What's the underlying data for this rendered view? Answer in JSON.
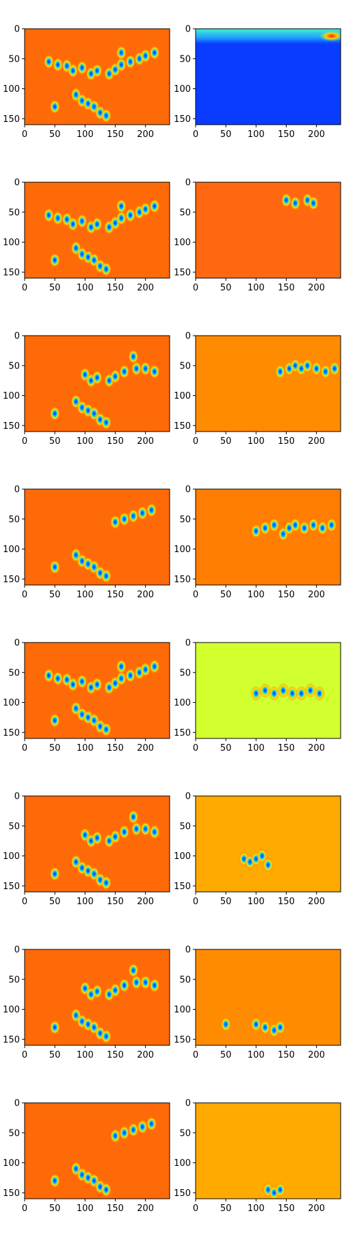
{
  "chart_data": {
    "type": "heatmap",
    "colormap": "jet",
    "layout": "8 rows x 2 columns of image panels",
    "x_range": [
      0,
      240
    ],
    "y_range": [
      160,
      0
    ],
    "x_ticks": [
      0,
      50,
      100,
      150,
      200
    ],
    "y_ticks": [
      0,
      50,
      100,
      150
    ],
    "rows": [
      {
        "left": {
          "background": "#ff6a08",
          "blobs": [
            [
              40,
              55
            ],
            [
              55,
              60
            ],
            [
              70,
              62
            ],
            [
              80,
              70
            ],
            [
              95,
              65
            ],
            [
              110,
              75
            ],
            [
              120,
              70
            ],
            [
              140,
              75
            ],
            [
              150,
              68
            ],
            [
              160,
              60
            ],
            [
              175,
              55
            ],
            [
              190,
              50
            ],
            [
              200,
              45
            ],
            [
              215,
              40
            ],
            [
              85,
              110
            ],
            [
              95,
              120
            ],
            [
              105,
              125
            ],
            [
              115,
              130
            ],
            [
              125,
              140
            ],
            [
              135,
              145
            ],
            [
              50,
              130
            ],
            [
              160,
              40
            ]
          ]
        },
        "right": {
          "background": "#0a3cff",
          "band": {
            "y": [
              0,
              25
            ],
            "color": "#2ec8e8",
            "hot_spot": [
              225,
              12
            ]
          }
        }
      },
      {
        "left": {
          "background": "#ff6a08",
          "blobs": [
            [
              40,
              55
            ],
            [
              55,
              60
            ],
            [
              70,
              62
            ],
            [
              80,
              70
            ],
            [
              95,
              65
            ],
            [
              110,
              75
            ],
            [
              120,
              70
            ],
            [
              140,
              75
            ],
            [
              150,
              68
            ],
            [
              160,
              60
            ],
            [
              175,
              55
            ],
            [
              190,
              50
            ],
            [
              200,
              45
            ],
            [
              215,
              40
            ],
            [
              85,
              110
            ],
            [
              95,
              120
            ],
            [
              105,
              125
            ],
            [
              115,
              130
            ],
            [
              125,
              140
            ],
            [
              135,
              145
            ],
            [
              50,
              130
            ],
            [
              160,
              40
            ]
          ]
        },
        "right": {
          "background": "#ff6810",
          "blobs": [
            [
              150,
              30
            ],
            [
              165,
              35
            ],
            [
              185,
              30
            ],
            [
              195,
              35
            ]
          ]
        }
      },
      {
        "left": {
          "background": "#ff6a08",
          "blobs": [
            [
              100,
              65
            ],
            [
              110,
              75
            ],
            [
              120,
              70
            ],
            [
              140,
              75
            ],
            [
              150,
              68
            ],
            [
              165,
              60
            ],
            [
              185,
              55
            ],
            [
              200,
              55
            ],
            [
              215,
              60
            ],
            [
              85,
              110
            ],
            [
              95,
              120
            ],
            [
              105,
              125
            ],
            [
              115,
              130
            ],
            [
              125,
              140
            ],
            [
              135,
              145
            ],
            [
              50,
              130
            ],
            [
              180,
              35
            ]
          ]
        },
        "right": {
          "background": "#ff8c00",
          "blobs": [
            [
              140,
              60
            ],
            [
              155,
              55
            ],
            [
              165,
              50
            ],
            [
              175,
              55
            ],
            [
              185,
              50
            ],
            [
              200,
              55
            ],
            [
              215,
              60
            ],
            [
              230,
              55
            ]
          ]
        }
      },
      {
        "left": {
          "background": "#ff6a08",
          "blobs": [
            [
              150,
              55
            ],
            [
              165,
              50
            ],
            [
              180,
              45
            ],
            [
              195,
              40
            ],
            [
              210,
              35
            ],
            [
              85,
              110
            ],
            [
              95,
              120
            ],
            [
              105,
              125
            ],
            [
              115,
              130
            ],
            [
              125,
              140
            ],
            [
              135,
              145
            ],
            [
              50,
              130
            ]
          ]
        },
        "right": {
          "background": "#ff7d00",
          "blobs": [
            [
              100,
              70
            ],
            [
              115,
              65
            ],
            [
              130,
              60
            ],
            [
              145,
              75
            ],
            [
              155,
              65
            ],
            [
              165,
              60
            ],
            [
              180,
              65
            ],
            [
              195,
              60
            ],
            [
              210,
              65
            ],
            [
              225,
              60
            ]
          ]
        }
      },
      {
        "left": {
          "background": "#ff6a08",
          "blobs": [
            [
              40,
              55
            ],
            [
              55,
              60
            ],
            [
              70,
              62
            ],
            [
              80,
              70
            ],
            [
              95,
              65
            ],
            [
              110,
              75
            ],
            [
              120,
              70
            ],
            [
              140,
              75
            ],
            [
              150,
              68
            ],
            [
              160,
              60
            ],
            [
              175,
              55
            ],
            [
              190,
              50
            ],
            [
              200,
              45
            ],
            [
              215,
              40
            ],
            [
              85,
              110
            ],
            [
              95,
              120
            ],
            [
              105,
              125
            ],
            [
              115,
              130
            ],
            [
              125,
              140
            ],
            [
              135,
              145
            ],
            [
              50,
              130
            ],
            [
              160,
              40
            ]
          ]
        },
        "right": {
          "background": "#d2ff2e",
          "blobs": [
            [
              100,
              85
            ],
            [
              115,
              80
            ],
            [
              130,
              85
            ],
            [
              145,
              80
            ],
            [
              160,
              85
            ],
            [
              175,
              85
            ],
            [
              190,
              80
            ],
            [
              205,
              85
            ]
          ]
        }
      },
      {
        "left": {
          "background": "#ff6a08",
          "blobs": [
            [
              100,
              65
            ],
            [
              110,
              75
            ],
            [
              120,
              70
            ],
            [
              140,
              75
            ],
            [
              150,
              68
            ],
            [
              165,
              60
            ],
            [
              185,
              55
            ],
            [
              200,
              55
            ],
            [
              215,
              60
            ],
            [
              85,
              110
            ],
            [
              95,
              120
            ],
            [
              105,
              125
            ],
            [
              115,
              130
            ],
            [
              125,
              140
            ],
            [
              135,
              145
            ],
            [
              50,
              130
            ],
            [
              180,
              35
            ]
          ]
        },
        "right": {
          "background": "#ffaa00",
          "blobs": [
            [
              80,
              105
            ],
            [
              90,
              110
            ],
            [
              100,
              105
            ],
            [
              110,
              100
            ],
            [
              120,
              115
            ]
          ]
        }
      },
      {
        "left": {
          "background": "#ff6a08",
          "blobs": [
            [
              100,
              65
            ],
            [
              110,
              75
            ],
            [
              120,
              70
            ],
            [
              140,
              75
            ],
            [
              150,
              68
            ],
            [
              165,
              60
            ],
            [
              185,
              55
            ],
            [
              200,
              55
            ],
            [
              215,
              60
            ],
            [
              85,
              110
            ],
            [
              95,
              120
            ],
            [
              105,
              125
            ],
            [
              115,
              130
            ],
            [
              125,
              140
            ],
            [
              135,
              145
            ],
            [
              50,
              130
            ],
            [
              180,
              35
            ]
          ]
        },
        "right": {
          "background": "#ff8c00",
          "blobs": [
            [
              50,
              125
            ],
            [
              100,
              125
            ],
            [
              115,
              130
            ],
            [
              130,
              135
            ],
            [
              140,
              130
            ]
          ]
        }
      },
      {
        "left": {
          "background": "#ff6a08",
          "blobs": [
            [
              150,
              55
            ],
            [
              165,
              50
            ],
            [
              180,
              45
            ],
            [
              195,
              40
            ],
            [
              210,
              35
            ],
            [
              85,
              110
            ],
            [
              95,
              120
            ],
            [
              105,
              125
            ],
            [
              115,
              130
            ],
            [
              125,
              140
            ],
            [
              135,
              145
            ],
            [
              50,
              130
            ]
          ]
        },
        "right": {
          "background": "#ffaa00",
          "blobs": [
            [
              120,
              145
            ],
            [
              130,
              150
            ],
            [
              140,
              145
            ]
          ]
        }
      }
    ]
  }
}
